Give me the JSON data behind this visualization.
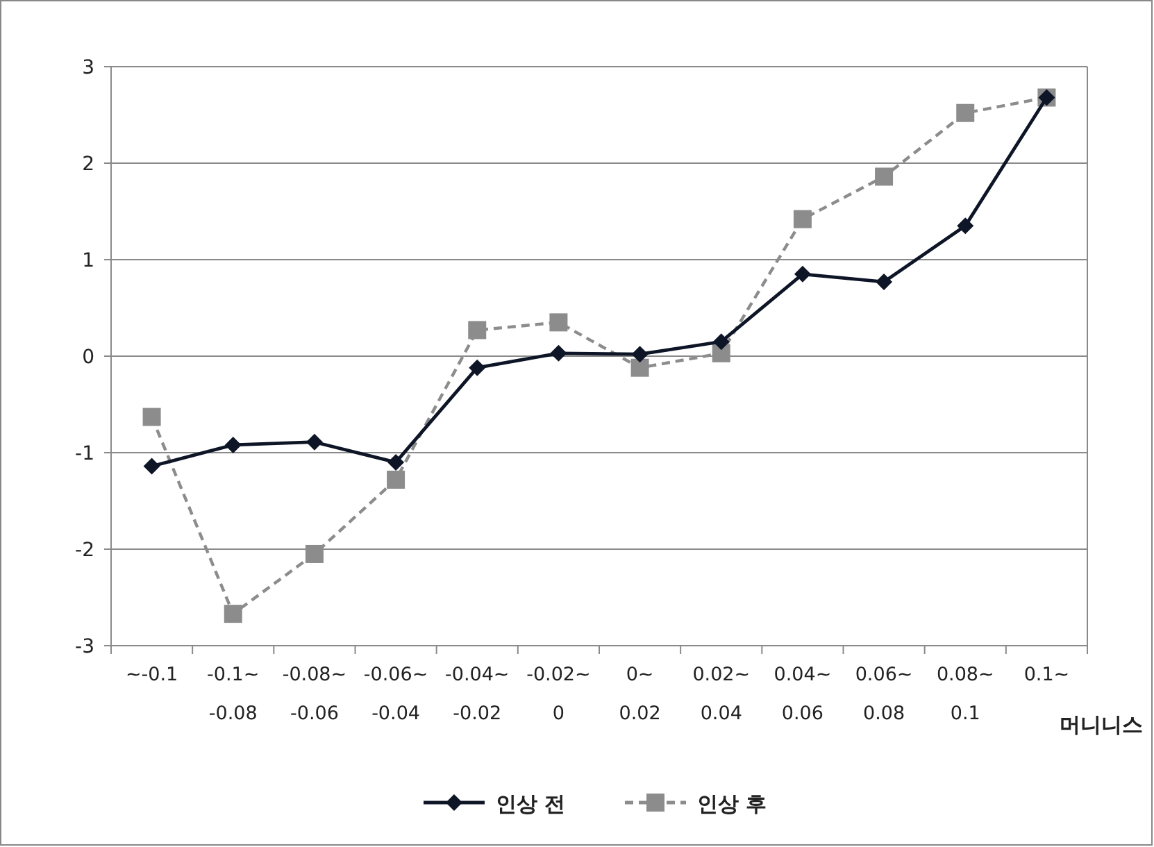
{
  "chart_data": {
    "type": "line",
    "categories": [
      "~-0.1",
      "-0.1~\n-0.08",
      "-0.08~\n-0.06",
      "-0.06~\n-0.04",
      "-0.04~\n-0.02",
      "-0.02~\n0",
      "0~\n0.02",
      "0.02~\n0.04",
      "0.04~\n0.06",
      "0.06~\n0.08",
      "0.08~\n0.1",
      "0.1~"
    ],
    "xlabel": "머니니스",
    "series": [
      {
        "name": "인상 전",
        "color": "#0d1526",
        "marker": "diamond",
        "line_style": "solid",
        "values": [
          -1.14,
          -0.92,
          -0.89,
          -1.1,
          -0.12,
          0.03,
          0.02,
          0.15,
          0.85,
          0.77,
          1.35,
          2.68
        ]
      },
      {
        "name": "인상 후",
        "color": "#8c8c8c",
        "marker": "square",
        "line_style": "dashed",
        "values": [
          -0.63,
          -2.67,
          -2.05,
          -1.28,
          0.27,
          0.35,
          -0.12,
          0.03,
          1.42,
          1.86,
          2.52,
          2.68
        ]
      }
    ],
    "ylim": [
      -3,
      3
    ],
    "yticks": [
      -3,
      -2,
      -1,
      0,
      1,
      2,
      3
    ],
    "grid": "y",
    "legend": "bottom"
  }
}
